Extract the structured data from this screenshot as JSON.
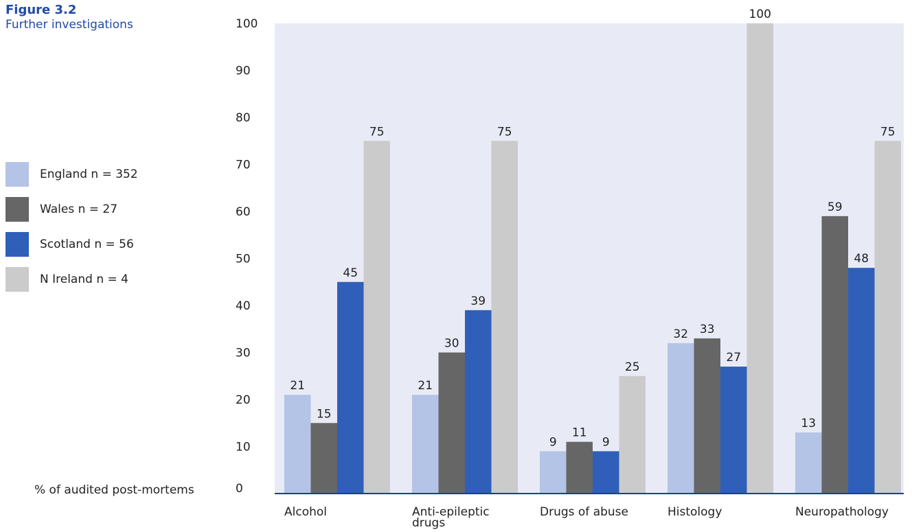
{
  "figure": {
    "number": "Figure 3.2",
    "title": "Further investigations"
  },
  "chart_data": {
    "type": "bar",
    "title": "Further investigations",
    "ylabel": "% of audited post-mortems",
    "xlabel": "",
    "ylim": [
      0,
      100
    ],
    "yticks": [
      0,
      10,
      20,
      30,
      40,
      50,
      60,
      70,
      80,
      90,
      100
    ],
    "grid": false,
    "legend_position": "left",
    "categories": [
      "Alcohol",
      "Anti-epileptic drugs",
      "Drugs of abuse",
      "Histology",
      "Neuropathology"
    ],
    "category_lines": [
      [
        "Alcohol"
      ],
      [
        "Anti-epileptic",
        "drugs"
      ],
      [
        "Drugs of abuse"
      ],
      [
        "Histology"
      ],
      [
        "Neuropathology"
      ]
    ],
    "series": [
      {
        "name": "England",
        "legend_label": "England  n = 352",
        "color": "#b4c4e6",
        "values": [
          21,
          21,
          9,
          32,
          13
        ]
      },
      {
        "name": "Wales",
        "legend_label": "Wales  n = 27",
        "color": "#666666",
        "values": [
          15,
          30,
          11,
          33,
          59
        ]
      },
      {
        "name": "Scotland",
        "legend_label": "Scotland  n = 56",
        "color": "#2f5fb8",
        "values": [
          45,
          39,
          9,
          27,
          48
        ]
      },
      {
        "name": "N Ireland",
        "legend_label": "N Ireland  n = 4",
        "color": "#cbcbcb",
        "values": [
          75,
          75,
          25,
          100,
          75
        ]
      }
    ],
    "plot_background": "#e8ebf6",
    "axis_color": "#1a3c9c"
  }
}
